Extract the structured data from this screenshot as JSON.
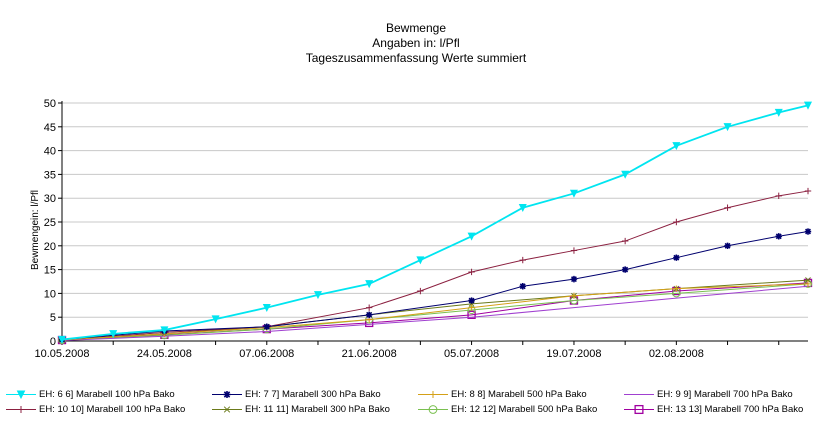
{
  "chart_data": {
    "type": "line",
    "title_lines": [
      "Bewmenge",
      "Angaben in: l/Pfl",
      "Tageszusammenfassung Werte summiert"
    ],
    "xlabel": "",
    "ylabel": "Bewmengein: l/Pfl",
    "ylim": [
      0,
      50
    ],
    "yticks": [
      "0",
      "5",
      "10",
      "15",
      "20",
      "25",
      "30",
      "35",
      "40",
      "45",
      "50"
    ],
    "xlim": [
      "2008-05-10",
      "2008-08-20"
    ],
    "xticks": [
      "10.05.2008",
      "24.05.2008",
      "07.06.2008",
      "21.06.2008",
      "05.07.2008",
      "19.07.2008",
      "02.08.2008"
    ],
    "grid": "horizontal",
    "legend_position": "bottom",
    "series": [
      {
        "name": "EH: 6 6] Marabell 100 hPa Bako",
        "color": "#00e5f0",
        "marker": "triangle-down",
        "points": [
          [
            "2008-05-10",
            0.3
          ],
          [
            "2008-05-17",
            1.5
          ],
          [
            "2008-05-24",
            2.3
          ],
          [
            "2008-05-31",
            4.6
          ],
          [
            "2008-06-07",
            7.0
          ],
          [
            "2008-06-14",
            9.7
          ],
          [
            "2008-06-21",
            12.0
          ],
          [
            "2008-06-28",
            17.0
          ],
          [
            "2008-07-05",
            22.0
          ],
          [
            "2008-07-12",
            28.0
          ],
          [
            "2008-07-19",
            31.0
          ],
          [
            "2008-07-26",
            35.0
          ],
          [
            "2008-08-02",
            41.0
          ],
          [
            "2008-08-09",
            45.0
          ],
          [
            "2008-08-16",
            48.0
          ],
          [
            "2008-08-20",
            49.5
          ]
        ]
      },
      {
        "name": "EH: 7 7] Marabell 300 hPa Bako",
        "color": "#00006e",
        "marker": "star",
        "points": [
          [
            "2008-05-10",
            0.3
          ],
          [
            "2008-05-24",
            2.1
          ],
          [
            "2008-06-07",
            3.0
          ],
          [
            "2008-06-21",
            5.5
          ],
          [
            "2008-07-05",
            8.5
          ],
          [
            "2008-07-12",
            11.5
          ],
          [
            "2008-07-19",
            13.0
          ],
          [
            "2008-07-26",
            15.0
          ],
          [
            "2008-08-02",
            17.5
          ],
          [
            "2008-08-09",
            20.0
          ],
          [
            "2008-08-16",
            22.0
          ],
          [
            "2008-08-20",
            23.0
          ]
        ]
      },
      {
        "name": "EH: 8 8] Marabell 500 hPa Bako",
        "color": "#d4a017",
        "marker": "plus",
        "points": [
          [
            "2008-05-10",
            0.2
          ],
          [
            "2008-05-24",
            1.5
          ],
          [
            "2008-06-07",
            2.8
          ],
          [
            "2008-06-21",
            4.5
          ],
          [
            "2008-07-05",
            7.0
          ],
          [
            "2008-07-19",
            9.5
          ],
          [
            "2008-08-02",
            11.0
          ],
          [
            "2008-08-20",
            12.0
          ]
        ]
      },
      {
        "name": "EH: 9 9] Marabell 700 hPa Bako",
        "color": "#a040d0",
        "marker": "none",
        "points": [
          [
            "2008-05-10",
            0.1
          ],
          [
            "2008-05-24",
            1.0
          ],
          [
            "2008-06-07",
            2.0
          ],
          [
            "2008-06-21",
            3.5
          ],
          [
            "2008-07-05",
            5.0
          ],
          [
            "2008-07-19",
            7.0
          ],
          [
            "2008-08-02",
            9.0
          ],
          [
            "2008-08-20",
            11.5
          ]
        ]
      },
      {
        "name": "EH: 10 10] Marabell 100 hPa Bako",
        "color": "#8b2040",
        "marker": "plus",
        "points": [
          [
            "2008-05-10",
            0.2
          ],
          [
            "2008-05-24",
            1.8
          ],
          [
            "2008-06-07",
            3.0
          ],
          [
            "2008-06-21",
            7.0
          ],
          [
            "2008-06-28",
            10.5
          ],
          [
            "2008-07-05",
            14.5
          ],
          [
            "2008-07-12",
            17.0
          ],
          [
            "2008-07-19",
            19.0
          ],
          [
            "2008-07-26",
            21.0
          ],
          [
            "2008-08-02",
            25.0
          ],
          [
            "2008-08-09",
            28.0
          ],
          [
            "2008-08-16",
            30.5
          ],
          [
            "2008-08-20",
            31.5
          ]
        ]
      },
      {
        "name": "EH: 11 11] Marabell 300 hPa Bako",
        "color": "#6b7a1a",
        "marker": "x",
        "points": [
          [
            "2008-05-10",
            0.2
          ],
          [
            "2008-05-24",
            1.5
          ],
          [
            "2008-06-07",
            3.0
          ],
          [
            "2008-06-21",
            5.5
          ],
          [
            "2008-07-05",
            7.8
          ],
          [
            "2008-07-19",
            9.5
          ],
          [
            "2008-08-02",
            11.0
          ],
          [
            "2008-08-20",
            12.8
          ]
        ]
      },
      {
        "name": "EH: 12 12] Marabell 500 hPa Bako",
        "color": "#7ac050",
        "marker": "circle",
        "points": [
          [
            "2008-05-10",
            0.2
          ],
          [
            "2008-05-24",
            1.2
          ],
          [
            "2008-06-07",
            2.5
          ],
          [
            "2008-06-21",
            4.5
          ],
          [
            "2008-07-05",
            6.5
          ],
          [
            "2008-07-19",
            8.5
          ],
          [
            "2008-08-02",
            10.0
          ],
          [
            "2008-08-20",
            12.0
          ]
        ]
      },
      {
        "name": "EH: 13 13] Marabell 700 hPa Bako",
        "color": "#a000a0",
        "marker": "square",
        "points": [
          [
            "2008-05-10",
            0.2
          ],
          [
            "2008-05-24",
            1.3
          ],
          [
            "2008-06-07",
            2.5
          ],
          [
            "2008-06-21",
            3.8
          ],
          [
            "2008-07-05",
            5.5
          ],
          [
            "2008-07-19",
            8.5
          ],
          [
            "2008-08-02",
            10.5
          ],
          [
            "2008-08-20",
            12.2
          ]
        ]
      }
    ]
  }
}
